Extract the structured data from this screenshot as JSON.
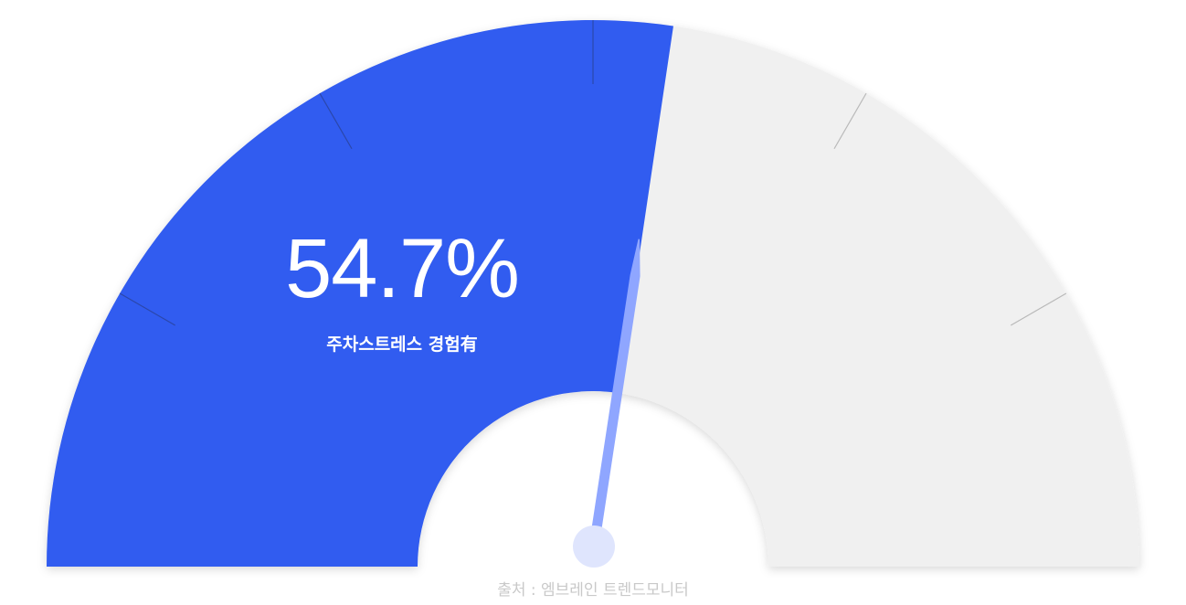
{
  "chart_data": {
    "type": "gauge",
    "value": 54.7,
    "range": [
      0,
      100
    ],
    "value_label": "54.7%",
    "label": "주차스트레스 경험有",
    "major_ticks": 6,
    "source": "출처 : 엠브레인 트렌드모니터",
    "colors": {
      "fill": "#315cf0",
      "track": "#f0f0f0",
      "needle": "#8fa6ff",
      "hub": "#dfe5fd",
      "tick_on_fill": "#2b47aa",
      "tick_on_track": "#b9b9b9"
    }
  }
}
